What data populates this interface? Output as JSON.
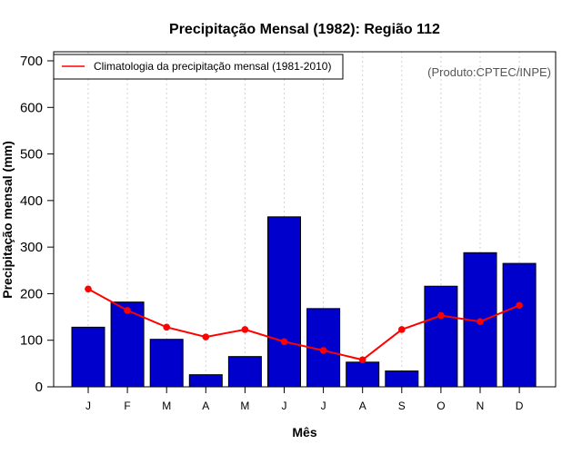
{
  "chart_data": {
    "type": "bar",
    "title": "Precipitação Mensal (1982): Região 112",
    "xlabel": "Mês",
    "ylabel": "Precipitação mensal (mm)",
    "ylim": [
      0,
      700
    ],
    "yticks": [
      0,
      100,
      200,
      300,
      400,
      500,
      600,
      700
    ],
    "categories": [
      "J",
      "F",
      "M",
      "A",
      "M",
      "J",
      "J",
      "A",
      "S",
      "O",
      "N",
      "D"
    ],
    "series": [
      {
        "name": "Precipitação mensal (1982)",
        "type": "bar",
        "color": "#0000cc",
        "values": [
          128,
          182,
          102,
          26,
          65,
          365,
          168,
          53,
          34,
          216,
          288,
          265
        ]
      },
      {
        "name": "Climatologia da precipitação mensal (1981-2010)",
        "type": "line",
        "color": "#ff0000",
        "values": [
          210,
          164,
          128,
          107,
          123,
          97,
          78,
          58,
          123,
          153,
          140,
          175
        ]
      }
    ],
    "legend": {
      "entries": [
        "Climatologia da precipitação mensal (1981-2010)"
      ],
      "position": "top-left"
    },
    "grid": "vertical-dotted",
    "annotation": "(Produto:CPTEC/INPE)"
  }
}
